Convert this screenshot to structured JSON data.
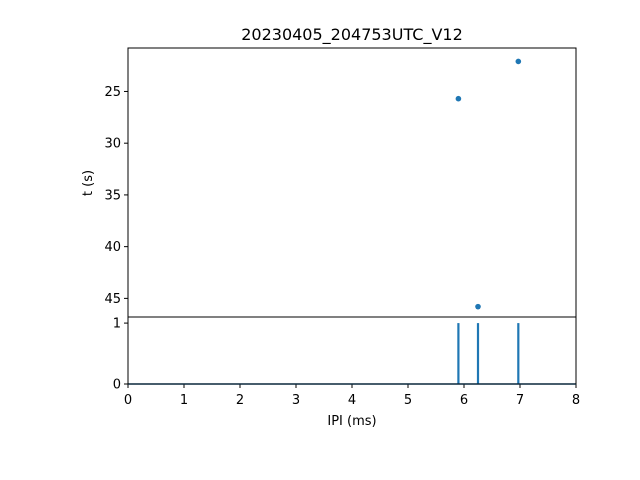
{
  "chart_data": [
    {
      "type": "scatter",
      "title": "20230405_204753UTC_V12",
      "ylabel": "t (s)",
      "xlim": [
        0,
        8
      ],
      "ylim": [
        46.8,
        20.8
      ],
      "y_inverted": true,
      "yticks": [
        25,
        30,
        35,
        40,
        45
      ],
      "ytick_labels": [
        "25",
        "30",
        "35",
        "40",
        "45"
      ],
      "grid": false,
      "color": "#1f77b4",
      "points": [
        {
          "x": 5.9,
          "y": 25.7
        },
        {
          "x": 6.25,
          "y": 45.8
        },
        {
          "x": 6.97,
          "y": 22.1
        }
      ]
    },
    {
      "type": "line",
      "xlabel": "IPI (ms)",
      "xlim": [
        0,
        8
      ],
      "ylim": [
        0,
        1.1
      ],
      "xticks": [
        0,
        1,
        2,
        3,
        4,
        5,
        6,
        7,
        8
      ],
      "xtick_labels": [
        "0",
        "1",
        "2",
        "3",
        "4",
        "5",
        "6",
        "7",
        "8"
      ],
      "yticks": [
        0,
        1
      ],
      "ytick_labels": [
        "0",
        "1"
      ],
      "grid": false,
      "color": "#1f77b4",
      "spikes": [
        {
          "x": 5.9,
          "y": 1
        },
        {
          "x": 6.25,
          "y": 1
        },
        {
          "x": 6.97,
          "y": 1
        }
      ]
    }
  ]
}
